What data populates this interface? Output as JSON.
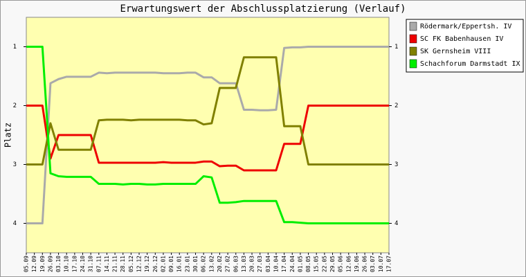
{
  "chart_data": {
    "type": "line",
    "title": "Erwartungswert der Abschlussplatzierung (Verlauf)",
    "y_label": "Platz",
    "categories": [
      "05.09",
      "12.09",
      "19.09",
      "26.09",
      "03.10",
      "10.10",
      "17.10",
      "24.10",
      "31.10",
      "07.11",
      "14.11",
      "21.11",
      "28.11",
      "05.12",
      "12.12",
      "19.12",
      "26.12",
      "02.01",
      "09.01",
      "16.01",
      "23.01",
      "30.01",
      "06.02",
      "13.02",
      "20.02",
      "27.02",
      "06.03",
      "13.03",
      "20.03",
      "27.03",
      "03.04",
      "10.04",
      "17.04",
      "24.04",
      "01.05",
      "08.05",
      "15.05",
      "22.05",
      "29.05",
      "05.06",
      "12.06",
      "19.06",
      "26.06",
      "03.07",
      "10.07",
      "17.07"
    ],
    "series": [
      {
        "name": "Rödermark/Eppertsh. IV",
        "color": "#aaaaaa",
        "values": [
          4,
          4,
          4,
          1.62,
          1.55,
          1.51,
          1.51,
          1.51,
          1.51,
          1.44,
          1.45,
          1.44,
          1.44,
          1.44,
          1.44,
          1.44,
          1.44,
          1.45,
          1.45,
          1.45,
          1.44,
          1.44,
          1.52,
          1.52,
          1.62,
          1.62,
          1.62,
          2.07,
          2.07,
          2.08,
          2.08,
          2.07,
          1.02,
          1.01,
          1.01,
          1,
          1,
          1,
          1,
          1,
          1,
          1,
          1,
          1,
          1,
          1
        ]
      },
      {
        "name": "SC FK Babenhausen IV",
        "color": "#ee0000",
        "values": [
          2,
          2,
          2,
          2.9,
          2.5,
          2.5,
          2.5,
          2.5,
          2.5,
          2.97,
          2.97,
          2.97,
          2.97,
          2.97,
          2.97,
          2.97,
          2.97,
          2.96,
          2.97,
          2.97,
          2.97,
          2.97,
          2.95,
          2.95,
          3.03,
          3.02,
          3.02,
          3.1,
          3.1,
          3.1,
          3.1,
          3.1,
          2.65,
          2.65,
          2.65,
          2,
          2,
          2,
          2,
          2,
          2,
          2,
          2,
          2,
          2,
          2
        ]
      },
      {
        "name": "SK Gernsheim VIII",
        "color": "#808000",
        "values": [
          3,
          3,
          3,
          2.3,
          2.75,
          2.75,
          2.75,
          2.75,
          2.75,
          2.25,
          2.24,
          2.24,
          2.24,
          2.25,
          2.24,
          2.24,
          2.24,
          2.24,
          2.24,
          2.24,
          2.25,
          2.25,
          2.32,
          2.3,
          1.7,
          1.7,
          1.7,
          1.18,
          1.18,
          1.18,
          1.18,
          1.18,
          2.35,
          2.35,
          2.35,
          3,
          3,
          3,
          3,
          3,
          3,
          3,
          3,
          3,
          3,
          3
        ]
      },
      {
        "name": "Schachforum Darmstadt IX",
        "color": "#00ee00",
        "values": [
          1,
          1,
          1,
          3.15,
          3.2,
          3.21,
          3.21,
          3.21,
          3.21,
          3.33,
          3.33,
          3.33,
          3.34,
          3.33,
          3.33,
          3.34,
          3.34,
          3.33,
          3.33,
          3.33,
          3.33,
          3.33,
          3.2,
          3.22,
          3.65,
          3.65,
          3.64,
          3.62,
          3.62,
          3.62,
          3.62,
          3.62,
          3.98,
          3.98,
          3.99,
          4,
          4,
          4,
          4,
          4,
          4,
          4,
          4,
          4,
          4,
          4
        ]
      }
    ],
    "ylim": [
      0.5,
      4.5
    ],
    "yticks": [
      1,
      2,
      3,
      4
    ],
    "y_inverted": true,
    "grid": false,
    "background": "#ffffb0",
    "legend": "right"
  }
}
